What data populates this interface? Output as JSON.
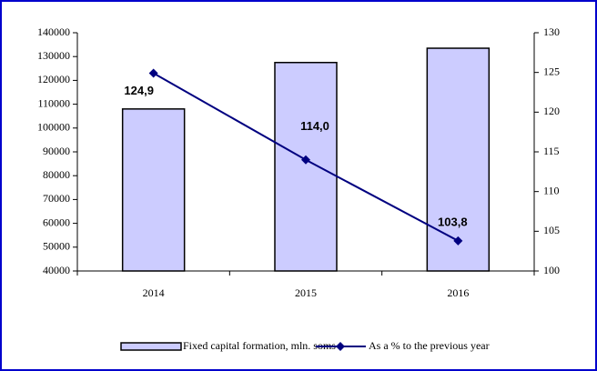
{
  "chart_data": {
    "type": "bar",
    "categories": [
      "2014",
      "2015",
      "2016"
    ],
    "series": [
      {
        "name": "Fixed capital formation, mln. soms",
        "color": "#ccccff",
        "values": [
          108000,
          127500,
          133500
        ]
      },
      {
        "name": "As a % to the previous year",
        "color": "#000080",
        "values": [
          124.9,
          114.0,
          103.8
        ],
        "value_labels": [
          "124,9",
          "114,0",
          "103,8"
        ],
        "axis": "y2",
        "type": "line"
      }
    ],
    "ylim": [
      40000,
      140000
    ],
    "yticks": [
      40000,
      50000,
      60000,
      70000,
      80000,
      90000,
      100000,
      110000,
      120000,
      130000,
      140000
    ],
    "y2lim": [
      100,
      130
    ],
    "y2ticks": [
      100,
      105,
      110,
      115,
      120,
      125,
      130
    ],
    "legend": "bottom"
  }
}
